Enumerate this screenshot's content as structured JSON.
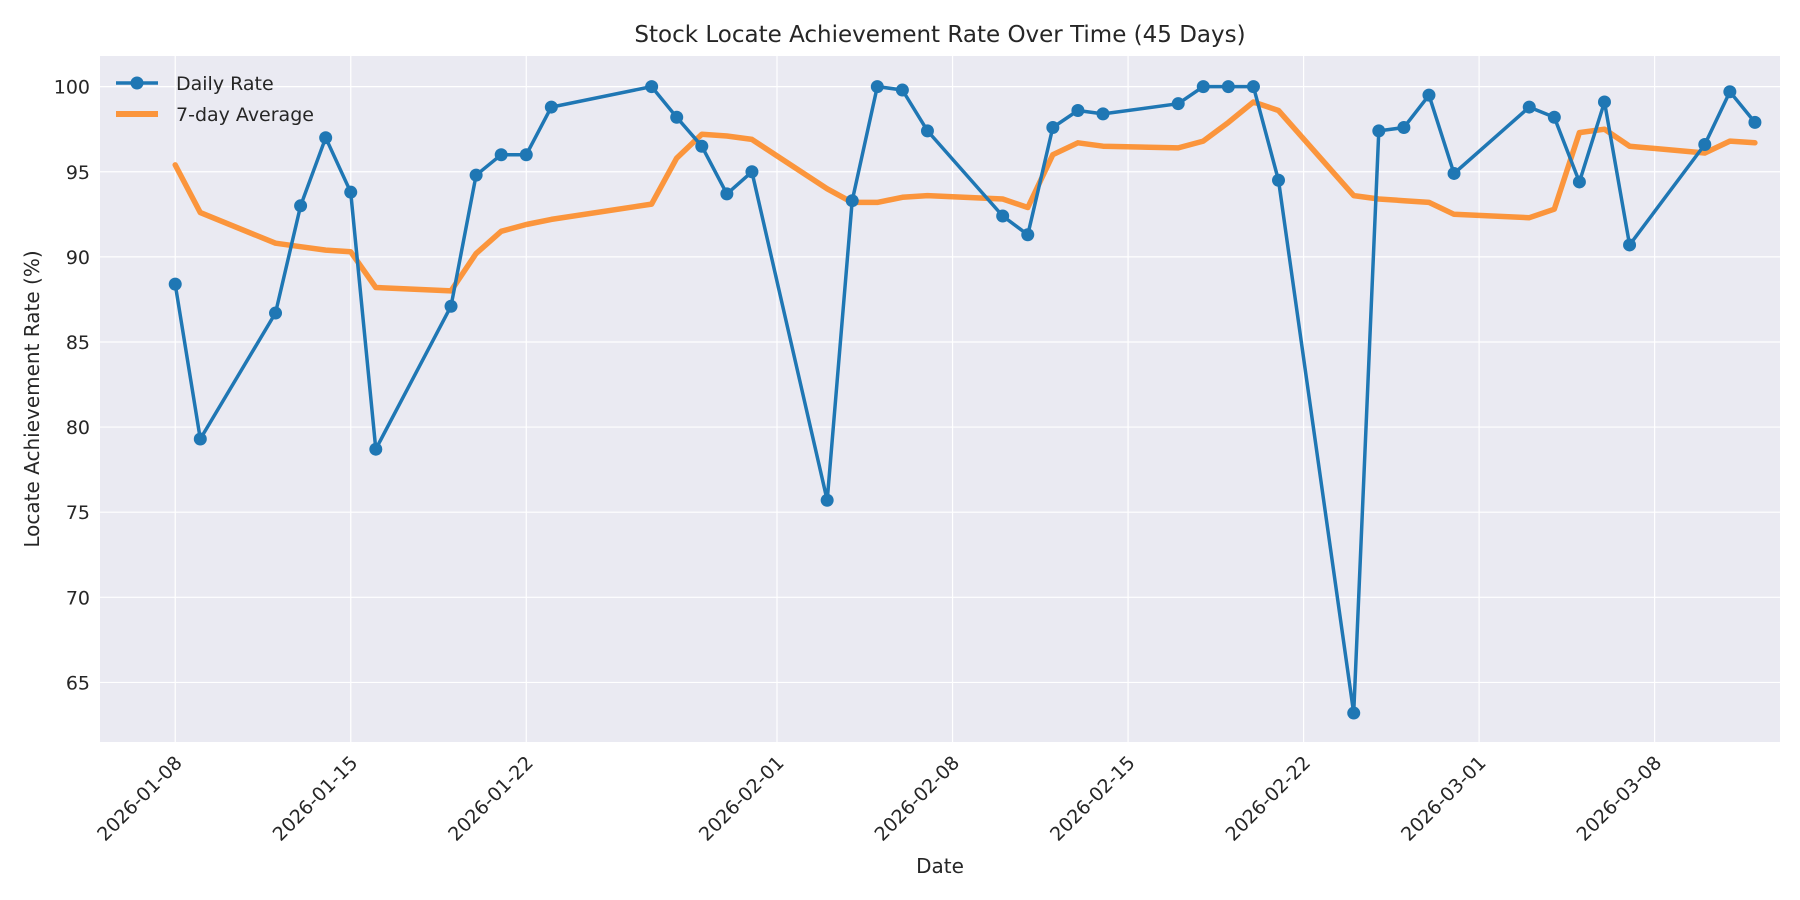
{
  "chart_data": {
    "type": "line",
    "title": "Stock Locate Achievement Rate Over Time (45 Days)",
    "xlabel": "Date",
    "ylabel": "Locate Achievement Rate (%)",
    "xlim": [
      "2026-01-05",
      "2026-03-13"
    ],
    "ylim": [
      61.5,
      101.8
    ],
    "xticks": [
      "2026-01-08",
      "2026-01-15",
      "2026-01-22",
      "2026-02-01",
      "2026-02-08",
      "2026-02-15",
      "2026-02-22",
      "2026-03-01",
      "2026-03-08"
    ],
    "yticks": [
      65,
      70,
      75,
      80,
      85,
      90,
      95,
      100
    ],
    "grid": true,
    "legend": "top-left",
    "x": [
      "2026-01-08",
      "2026-01-09",
      "2026-01-12",
      "2026-01-13",
      "2026-01-14",
      "2026-01-15",
      "2026-01-16",
      "2026-01-19",
      "2026-01-20",
      "2026-01-21",
      "2026-01-22",
      "2026-01-23",
      "2026-01-27",
      "2026-01-28",
      "2026-01-29",
      "2026-01-30",
      "2026-01-31",
      "2026-02-03",
      "2026-02-04",
      "2026-02-05",
      "2026-02-06",
      "2026-02-07",
      "2026-02-10",
      "2026-02-11",
      "2026-02-12",
      "2026-02-13",
      "2026-02-14",
      "2026-02-17",
      "2026-02-18",
      "2026-02-19",
      "2026-02-20",
      "2026-02-21",
      "2026-02-24",
      "2026-02-25",
      "2026-02-26",
      "2026-02-27",
      "2026-02-28",
      "2026-03-03",
      "2026-03-04",
      "2026-03-05",
      "2026-03-06",
      "2026-03-07",
      "2026-03-10",
      "2026-03-11",
      "2026-03-12"
    ],
    "series": [
      {
        "name": "Daily Rate",
        "color": "#1f77b4",
        "values": [
          88.4,
          79.3,
          86.7,
          93.0,
          97.0,
          93.8,
          78.7,
          87.1,
          94.8,
          96.0,
          96.0,
          98.8,
          100.0,
          98.2,
          96.5,
          93.7,
          95.0,
          75.7,
          93.3,
          100.0,
          99.8,
          97.4,
          92.4,
          91.3,
          97.6,
          98.6,
          98.4,
          99.0,
          100.0,
          100.0,
          100.0,
          94.5,
          63.2,
          97.4,
          97.6,
          99.5,
          94.9,
          98.8,
          98.2,
          94.4,
          99.1,
          90.7,
          96.6,
          99.7,
          97.9
        ]
      },
      {
        "name": "7-day Average",
        "color": "#ff7f0e",
        "values": [
          95.4,
          92.6,
          90.8,
          90.6,
          90.4,
          90.3,
          88.2,
          88.0,
          90.2,
          91.5,
          91.9,
          92.2,
          93.1,
          95.8,
          97.2,
          97.1,
          96.9,
          94.0,
          93.2,
          93.2,
          93.5,
          93.6,
          93.4,
          92.9,
          96.0,
          96.7,
          96.5,
          96.4,
          96.8,
          97.9,
          99.1,
          98.6,
          93.6,
          93.4,
          93.3,
          93.2,
          92.5,
          92.3,
          92.8,
          97.3,
          97.5,
          96.5,
          96.1,
          96.8,
          96.7
        ]
      }
    ]
  }
}
